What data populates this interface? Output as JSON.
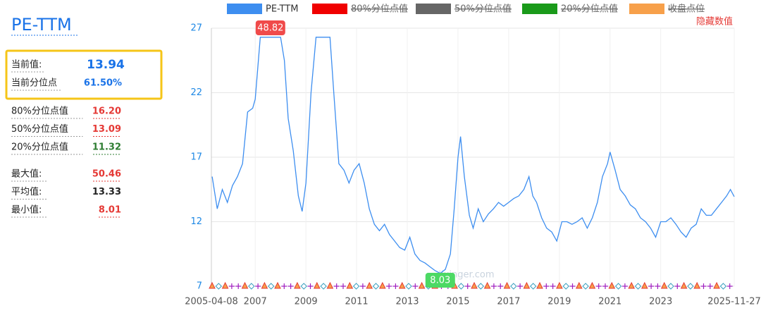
{
  "panel": {
    "title": "PE-TTM",
    "current": [
      {
        "label": "当前值:",
        "value": "13.94",
        "color": "#1a73e8"
      },
      {
        "label": "当前分位点",
        "value": "61.50%",
        "color": "#1a73e8"
      }
    ],
    "percentiles": [
      {
        "label": "80%分位点值",
        "value": "16.20",
        "color": "#e53935"
      },
      {
        "label": "50%分位点值",
        "value": "13.09",
        "color": "#e53935"
      },
      {
        "label": "20%分位点值",
        "value": "11.32",
        "color": "#2e7d32"
      }
    ],
    "stats": [
      {
        "label": "最大值:",
        "value": "50.46",
        "color": "#e53935"
      },
      {
        "label": "平均值:",
        "value": "13.33",
        "color": "#222222"
      },
      {
        "label": "最小值:",
        "value": "8.01",
        "color": "#e53935"
      }
    ]
  },
  "chart_data": {
    "type": "line",
    "hide_values_button": "隐藏数值",
    "watermark": "lixinger.com",
    "xlim": [
      2005.27,
      2025.9
    ],
    "xticks": [
      {
        "value": 2005.27,
        "label": "2005-04-08"
      },
      2007,
      2009,
      2011,
      2013,
      2015,
      2017,
      2019,
      2021,
      2023,
      {
        "value": 2025.9,
        "label": "2025-11-27"
      }
    ],
    "ylim": [
      7,
      27
    ],
    "yticks": [
      7,
      12,
      17,
      22,
      27
    ],
    "grid": true,
    "x": [
      2005.3,
      2005.5,
      2005.7,
      2005.9,
      2006.1,
      2006.3,
      2006.5,
      2006.7,
      2006.9,
      2007.0,
      2007.2,
      2007.5,
      2007.8,
      2008.0,
      2008.15,
      2008.3,
      2008.5,
      2008.7,
      2008.85,
      2009.0,
      2009.2,
      2009.4,
      2009.7,
      2009.95,
      2010.1,
      2010.3,
      2010.5,
      2010.7,
      2010.9,
      2011.1,
      2011.3,
      2011.5,
      2011.7,
      2011.9,
      2012.1,
      2012.3,
      2012.5,
      2012.7,
      2012.9,
      2013.1,
      2013.3,
      2013.5,
      2013.7,
      2013.9,
      2014.1,
      2014.3,
      2014.5,
      2014.7,
      2014.85,
      2015.0,
      2015.1,
      2015.25,
      2015.45,
      2015.6,
      2015.8,
      2016.0,
      2016.2,
      2016.4,
      2016.6,
      2016.8,
      2017.0,
      2017.2,
      2017.4,
      2017.6,
      2017.8,
      2017.95,
      2018.1,
      2018.3,
      2018.5,
      2018.7,
      2018.9,
      2019.1,
      2019.3,
      2019.5,
      2019.7,
      2019.9,
      2020.1,
      2020.3,
      2020.5,
      2020.7,
      2020.9,
      2021.0,
      2021.2,
      2021.4,
      2021.6,
      2021.8,
      2022.0,
      2022.2,
      2022.4,
      2022.6,
      2022.8,
      2023.0,
      2023.2,
      2023.4,
      2023.6,
      2023.8,
      2024.0,
      2024.2,
      2024.4,
      2024.6,
      2024.8,
      2025.0,
      2025.2,
      2025.4,
      2025.6,
      2025.75,
      2025.9
    ],
    "series": [
      {
        "name": "PE-TTM",
        "color": "#3d8ef0",
        "values": [
          15.5,
          13.0,
          14.5,
          13.5,
          14.8,
          15.5,
          16.5,
          20.5,
          20.8,
          21.5,
          26.3,
          26.3,
          26.3,
          26.3,
          24.5,
          20.0,
          17.5,
          14.0,
          12.8,
          15.0,
          22.0,
          26.3,
          26.3,
          26.3,
          22.0,
          16.5,
          16.0,
          15.0,
          16.0,
          16.5,
          15.0,
          13.0,
          11.8,
          11.3,
          11.8,
          11.0,
          10.5,
          10.0,
          9.8,
          10.8,
          9.5,
          9.0,
          8.8,
          8.5,
          8.2,
          8.0,
          8.3,
          9.5,
          13.0,
          17.0,
          18.6,
          15.5,
          12.5,
          11.5,
          13.0,
          12.0,
          12.6,
          13.0,
          13.5,
          13.2,
          13.5,
          13.8,
          14.0,
          14.5,
          15.5,
          14.0,
          13.5,
          12.3,
          11.5,
          11.2,
          10.5,
          12.0,
          12.0,
          11.8,
          12.0,
          12.3,
          11.5,
          12.3,
          13.5,
          15.5,
          16.5,
          17.4,
          16.0,
          14.5,
          14.0,
          13.3,
          13.0,
          12.3,
          12.0,
          11.5,
          10.8,
          12.0,
          12.0,
          12.3,
          11.8,
          11.2,
          10.8,
          11.5,
          11.8,
          13.0,
          12.5,
          12.5,
          13.0,
          13.5,
          14.0,
          14.5,
          13.94
        ]
      }
    ],
    "hidden_series": [
      {
        "name": "80%分位点值",
        "color": "#f00000"
      },
      {
        "name": "50%分位点值",
        "color": "#666666"
      },
      {
        "name": "20%分位点值",
        "color": "#1a9a1a"
      },
      {
        "name": "收盘点位",
        "color": "#f7a04a"
      }
    ],
    "annotations": [
      {
        "label": "48.82",
        "x": 2007.6,
        "color": "#f04a4a"
      },
      {
        "label": "8.03",
        "x": 2014.3,
        "color": "#4cd964"
      }
    ]
  }
}
